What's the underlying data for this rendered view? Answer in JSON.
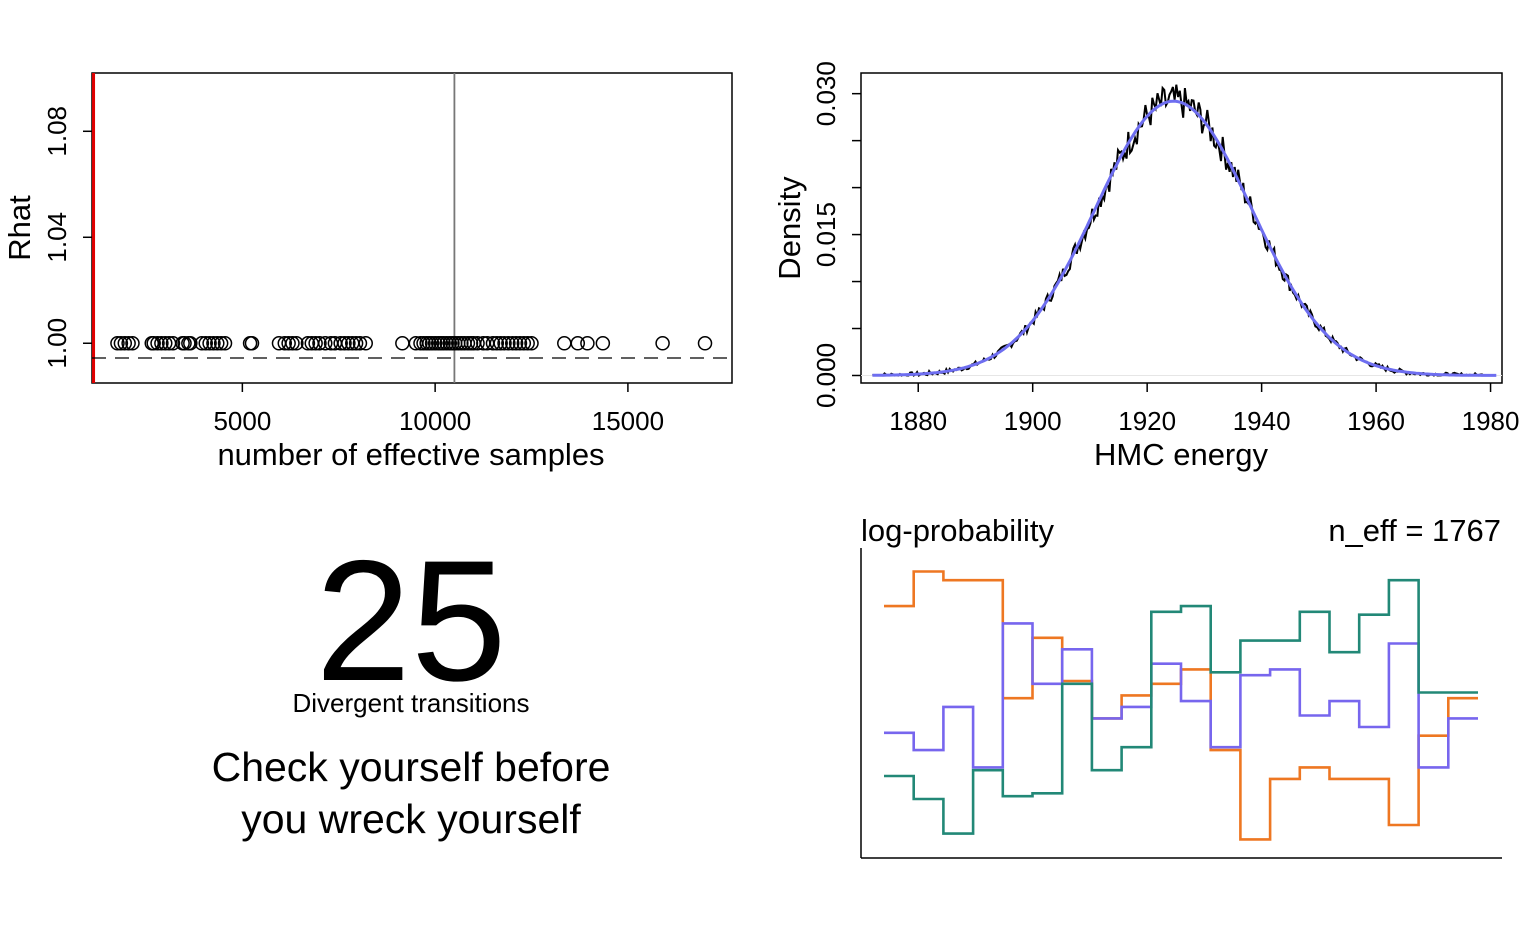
{
  "colors": {
    "axis": "#000000",
    "rhat_ref_line": "#e00000",
    "neff_ref_line": "#777777",
    "density_empirical": "#000000",
    "density_smooth": "#6e6ef0",
    "trace_orange": "#ee7722",
    "trace_purple": "#7766ee",
    "trace_teal": "#228877"
  },
  "chart_data": [
    {
      "id": "rhat-neff",
      "type": "scatter",
      "xlabel": "number of effective samples",
      "ylabel": "Rhat",
      "xlim": [
        1100,
        17700
      ],
      "ylim": [
        0.985,
        1.102
      ],
      "x_ticks": [
        5000,
        10000,
        15000
      ],
      "y_ticks": [
        1.0,
        1.04,
        1.08
      ],
      "y_tick_labels": [
        "1.00",
        "1.04",
        "1.08"
      ],
      "x_tick_labels": [
        "5000",
        "10000",
        "15000"
      ],
      "ref_vline_red": 1140,
      "ref_vline_gray": 10500,
      "points": {
        "y": 1.0,
        "x": [
          1760,
          1850,
          1950,
          2050,
          2150,
          2650,
          2700,
          2800,
          2900,
          3000,
          3100,
          3200,
          3450,
          3500,
          3600,
          3650,
          3950,
          4050,
          4150,
          4250,
          4350,
          4450,
          4550,
          5200,
          5250,
          5950,
          6100,
          6200,
          6300,
          6400,
          6700,
          6800,
          6900,
          7000,
          7150,
          7300,
          7400,
          7550,
          7650,
          7750,
          7850,
          7950,
          8050,
          8200,
          9150,
          9500,
          9620,
          9700,
          9780,
          9850,
          9920,
          10000,
          10080,
          10150,
          10220,
          10300,
          10380,
          10450,
          10520,
          10600,
          10680,
          10760,
          10850,
          10930,
          11000,
          11100,
          11250,
          11350,
          11500,
          11600,
          11700,
          11800,
          11900,
          12000,
          12100,
          12200,
          12300,
          12400,
          12500,
          13350,
          13700,
          13950,
          14350,
          15900,
          17000
        ]
      }
    },
    {
      "id": "energy-density",
      "type": "line",
      "xlabel": "HMC energy",
      "ylabel": "Density",
      "xlim": [
        1870,
        1982
      ],
      "ylim": [
        -0.0008,
        0.0322
      ],
      "x_ticks": [
        1880,
        1900,
        1920,
        1940,
        1960,
        1980
      ],
      "x_tick_labels": [
        "1880",
        "1900",
        "1920",
        "1940",
        "1960",
        "1980"
      ],
      "y_ticks_labeled": [
        0.0,
        0.015,
        0.03
      ],
      "y_tick_labels": [
        "0.000",
        "0.015",
        "0.030"
      ],
      "y_ticks_minor": [
        0.005,
        0.01,
        0.02,
        0.025
      ],
      "x_range": [
        1872,
        1981
      ],
      "smooth": {
        "mean": 1924.6,
        "sd": 13.7,
        "peak": 0.0292
      }
    },
    {
      "id": "trace",
      "type": "line",
      "title": "log-probability",
      "annotation": "n_eff = 1767",
      "x_steps": 21,
      "y_range": [
        0,
        100
      ],
      "series": [
        {
          "color_key": "trace_orange",
          "values": [
            84,
            96,
            93,
            93,
            52,
            73,
            58,
            45,
            53,
            57,
            62,
            34,
            3,
            24,
            28,
            24,
            24,
            8,
            39,
            52,
            52
          ]
        },
        {
          "color_key": "trace_purple",
          "values": [
            40,
            34,
            49,
            28,
            78,
            57,
            69,
            45,
            49,
            64,
            51,
            35,
            60,
            62,
            46,
            51,
            42,
            71,
            28,
            45,
            45
          ]
        },
        {
          "color_key": "trace_teal",
          "values": [
            25,
            17,
            5,
            27,
            18,
            19,
            57,
            27,
            35,
            82,
            84,
            61,
            72,
            72,
            82,
            68,
            81,
            93,
            54,
            54,
            54
          ]
        }
      ]
    }
  ],
  "divergent": {
    "count": "25",
    "label": "Divergent transitions",
    "message_line1": "Check yourself before",
    "message_line2": "you wreck yourself"
  }
}
